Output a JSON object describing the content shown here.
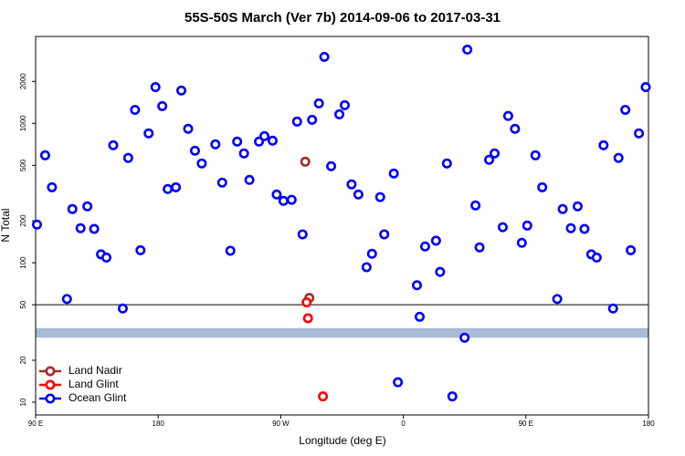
{
  "chart_data": {
    "type": "scatter",
    "title": "55S-50S March (Ver 7b)   2014-09-06 to 2017-03-31",
    "x_label": "Longitude (deg E)",
    "y_label": "N Total",
    "xlim": [
      90,
      540
    ],
    "xticks": [
      {
        "value": 90,
        "label": "90 E"
      },
      180,
      {
        "value": 270,
        "label": "90 W"
      },
      {
        "value": 360,
        "label": "0"
      },
      {
        "value": 450,
        "label": "90 E"
      },
      {
        "value": 540,
        "label": "180"
      }
    ],
    "ylim": [
      8.1,
      4200
    ],
    "log_y": true,
    "yticks": [
      10,
      20,
      50,
      100,
      200,
      500,
      1000,
      2000
    ],
    "reference_line": 50,
    "reference_band": [
      29,
      34
    ],
    "legend": "lower left",
    "series": [
      {
        "name": "Land Nadir",
        "color": "#a52a2a",
        "x": [
          288,
          291
        ],
        "values": [
          531,
          56
        ]
      },
      {
        "name": "Land Glint",
        "color": "#ff0000",
        "x": [
          289,
          290,
          301
        ],
        "values": [
          52,
          40,
          11
        ]
      },
      {
        "name": "Ocean Glint",
        "color": "#0000ff",
        "x": [
          91,
          97,
          102,
          113,
          117,
          123,
          128,
          133,
          138,
          142,
          147,
          154,
          158,
          163,
          167,
          173,
          178,
          183,
          187,
          193,
          197,
          202,
          207,
          212,
          222,
          227,
          233,
          238,
          243,
          247,
          254,
          258,
          264,
          267,
          272,
          278,
          282,
          286,
          293,
          298,
          302,
          307,
          313,
          317,
          322,
          327,
          333,
          337,
          343,
          346,
          353,
          356,
          370,
          372,
          376,
          384,
          387,
          392,
          396,
          405,
          407,
          413,
          416,
          423,
          427,
          433,
          437,
          442,
          447,
          451,
          457,
          462,
          473,
          477,
          483,
          488,
          493,
          498,
          502,
          507,
          514,
          518,
          523,
          527,
          533,
          538
        ],
        "values": [
          188,
          590,
          348,
          55,
          243,
          177,
          254,
          175,
          115,
          109,
          697,
          47,
          565,
          1250,
          123,
          848,
          1820,
          1330,
          338,
          348,
          1720,
          914,
          637,
          516,
          707,
          376,
          122,
          740,
          609,
          393,
          740,
          810,
          751,
          309,
          278,
          283,
          1030,
          160,
          1060,
          1390,
          3000,
          493,
          1160,
          1350,
          365,
          309,
          93,
          116,
          296,
          160,
          437,
          13.9,
          69,
          41,
          131,
          144,
          86,
          516,
          11,
          29,
          3380,
          258,
          129,
          548,
          609,
          180,
          1130,
          914,
          139,
          185,
          590,
          348,
          55,
          243,
          177,
          254,
          175,
          115,
          109,
          697,
          47,
          565,
          1250,
          123,
          848,
          1820
        ]
      }
    ]
  }
}
